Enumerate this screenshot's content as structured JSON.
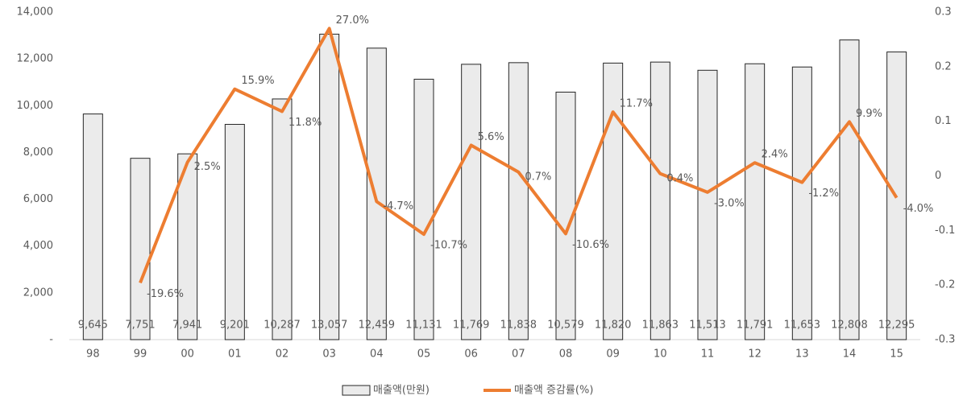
{
  "chart_data": {
    "type": "bar",
    "categories": [
      "98",
      "99",
      "00",
      "01",
      "02",
      "03",
      "04",
      "05",
      "06",
      "07",
      "08",
      "09",
      "10",
      "11",
      "12",
      "13",
      "14",
      "15"
    ],
    "series": [
      {
        "name": "매출액(만원)",
        "type": "bar",
        "color": "#ebebeb",
        "border": "#262626",
        "values": [
          9645,
          7751,
          7941,
          9201,
          10287,
          13057,
          12459,
          11131,
          11769,
          11838,
          10579,
          11820,
          11863,
          11513,
          11791,
          11653,
          12808,
          12295
        ],
        "value_labels": [
          "9,645",
          "7,751",
          "7,941",
          "9,201",
          "10,287",
          "13,057",
          "12,459",
          "11,131",
          "11,769",
          "11,838",
          "10,579",
          "11,820",
          "11,863",
          "11,513",
          "11,791",
          "11,653",
          "12,808",
          "12,295"
        ]
      },
      {
        "name": "매출액 증감률(%)",
        "type": "line",
        "axis": "y2",
        "color": "#ed7d31",
        "values": [
          null,
          -0.196,
          0.025,
          0.159,
          0.118,
          0.27,
          -0.047,
          -0.107,
          0.056,
          0.007,
          -0.106,
          0.117,
          0.004,
          -0.03,
          0.024,
          -0.012,
          0.099,
          -0.04
        ],
        "value_labels": [
          null,
          "-19.6%",
          "2.5%",
          "15.9%",
          "11.8%",
          "27.0%",
          "-4.7%",
          "-10.7%",
          "5.6%",
          "0.7%",
          "-10.6%",
          "11.7%",
          "0.4%",
          "-3.0%",
          "2.4%",
          "-1.2%",
          "9.9%",
          "-4.0%"
        ]
      }
    ],
    "ylim": [
      0,
      14000
    ],
    "yticks": [
      {
        "value": 0,
        "label": "-"
      },
      {
        "value": 2000,
        "label": "2,000"
      },
      {
        "value": 4000,
        "label": "4,000"
      },
      {
        "value": 6000,
        "label": "6,000"
      },
      {
        "value": 8000,
        "label": "8,000"
      },
      {
        "value": 10000,
        "label": "10,000"
      },
      {
        "value": 12000,
        "label": "12,000"
      },
      {
        "value": 14000,
        "label": "14,000"
      }
    ],
    "y2lim": [
      -0.3,
      0.3
    ],
    "y2ticks": [
      -0.3,
      -0.2,
      -0.1,
      0,
      0.1,
      0.2,
      0.3
    ],
    "legend": "bottom"
  }
}
